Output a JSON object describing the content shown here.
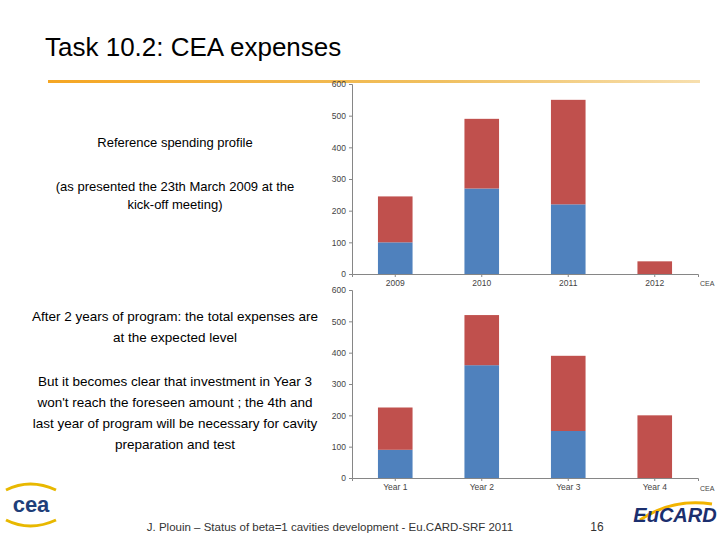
{
  "page": {
    "title": "Task 10.2: CEA expenses",
    "notes": [
      {
        "lines": [
          "Reference spending profile"
        ]
      },
      {
        "lines": [
          "(as presented the 23th March 2009 at the",
          "kick-off meeting)"
        ]
      },
      {
        "lines": [
          "After 2 years of program: the total expenses are",
          "at the expected level"
        ]
      },
      {
        "lines": [
          "But it becomes clear that investment in Year 3",
          "won't reach the foreseen amount ; the 4th and",
          "last year of program will be necessary for cavity",
          "preparation and test"
        ]
      }
    ],
    "footer": "J. Plouin – Status of beta=1 cavities development - Eu.CARD-SRF 2011",
    "page_number": "16",
    "logo_left": "cea",
    "logo_right": "EuCARD"
  },
  "chart_data": [
    {
      "type": "bar",
      "stacked": true,
      "grid": false,
      "categories": [
        "2009",
        "2010",
        "2011",
        "2012"
      ],
      "series": [
        {
          "color": "#4f81bd",
          "values": [
            100,
            270,
            220,
            0
          ]
        },
        {
          "color": "#c0504d",
          "values": [
            145,
            220,
            330,
            40
          ]
        }
      ],
      "ylim": [
        0,
        600
      ],
      "yticks": [
        0,
        100,
        200,
        300,
        400,
        500,
        600
      ],
      "annotation": "CEA"
    },
    {
      "type": "bar",
      "stacked": true,
      "grid": false,
      "categories": [
        "Year 1",
        "Year 2",
        "Year 3",
        "Year 4"
      ],
      "series": [
        {
          "color": "#4f81bd",
          "values": [
            90,
            360,
            150,
            0
          ]
        },
        {
          "color": "#c0504d",
          "values": [
            135,
            160,
            240,
            200
          ]
        }
      ],
      "ylim": [
        0,
        600
      ],
      "yticks": [
        0,
        100,
        200,
        300,
        400,
        500,
        600
      ],
      "annotation": "CEA"
    }
  ]
}
